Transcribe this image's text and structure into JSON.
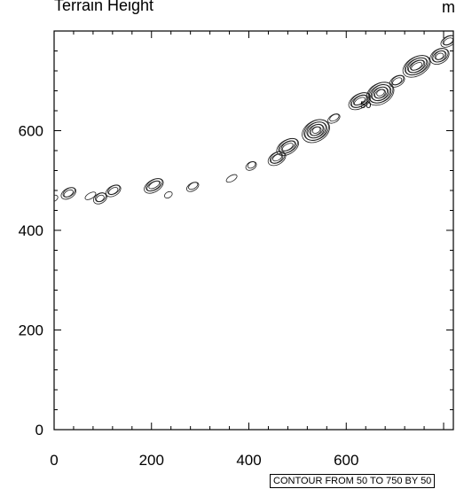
{
  "title": "Terrain Height",
  "units": "m",
  "info_label": "CONTOUR FROM 50 TO 750 BY 50",
  "chart_data": {
    "type": "contour",
    "title": "Terrain Height",
    "units": "m",
    "xlim": [
      0,
      820
    ],
    "ylim": [
      0,
      800
    ],
    "x_ticks": [
      0,
      200,
      400,
      600
    ],
    "y_ticks": [
      0,
      200,
      400,
      600
    ],
    "x_tick_labels": [
      "0",
      "200",
      "400",
      "600"
    ],
    "y_tick_labels": [
      "0",
      "200",
      "400",
      "600"
    ],
    "contour_levels": {
      "min": 50,
      "max": 750,
      "step": 50
    },
    "contour_label_text": "50",
    "contour_label_position": [
      640,
      645
    ],
    "features": [
      {
        "x": 0,
        "y": 465,
        "levels": 1
      },
      {
        "x": 30,
        "y": 475,
        "levels": 3
      },
      {
        "x": 75,
        "y": 470,
        "levels": 1
      },
      {
        "x": 95,
        "y": 465,
        "levels": 3
      },
      {
        "x": 122,
        "y": 480,
        "levels": 3
      },
      {
        "x": 205,
        "y": 490,
        "levels": 4
      },
      {
        "x": 235,
        "y": 472,
        "levels": 1
      },
      {
        "x": 285,
        "y": 488,
        "levels": 2
      },
      {
        "x": 365,
        "y": 505,
        "levels": 1
      },
      {
        "x": 405,
        "y": 530,
        "levels": 2
      },
      {
        "x": 458,
        "y": 545,
        "levels": 4
      },
      {
        "x": 480,
        "y": 568,
        "levels": 5
      },
      {
        "x": 538,
        "y": 600,
        "levels": 8
      },
      {
        "x": 575,
        "y": 625,
        "levels": 2
      },
      {
        "x": 628,
        "y": 660,
        "levels": 5
      },
      {
        "x": 670,
        "y": 675,
        "levels": 8
      },
      {
        "x": 705,
        "y": 700,
        "levels": 3
      },
      {
        "x": 745,
        "y": 730,
        "levels": 7
      },
      {
        "x": 792,
        "y": 750,
        "levels": 5
      },
      {
        "x": 810,
        "y": 780,
        "levels": 3
      }
    ]
  }
}
